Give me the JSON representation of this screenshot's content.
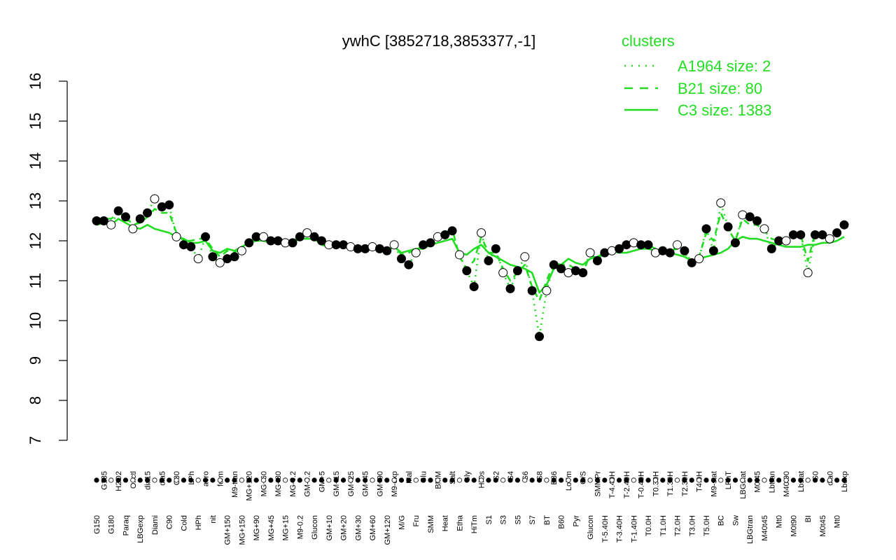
{
  "chart_data": {
    "type": "line",
    "title": "ywhC [3852718,3853377,-1]",
    "xlabel": "",
    "ylabel": "",
    "ylim": [
      7,
      16
    ],
    "yticks": [
      7,
      8,
      9,
      10,
      11,
      12,
      13,
      14,
      15,
      16
    ],
    "colors": {
      "line": "#22dd22",
      "point_fill": "#000000",
      "point_open": "#ffffff",
      "text": "#000000",
      "legend": "#22dd22"
    },
    "legend": {
      "title": "clusters",
      "position": "top-right",
      "entries": [
        {
          "label": "A1964 size: 2",
          "style": "dotted"
        },
        {
          "label": "B21 size: 80",
          "style": "dashed"
        },
        {
          "label": "C3 size: 1383",
          "style": "solid"
        }
      ]
    },
    "top_labels": [
      "G150",
      "G135",
      "G180",
      "H2O2",
      "Paraq",
      "Oxctl",
      "LBGexp",
      "dia15",
      "Diami",
      "dia5",
      "C90",
      "C30",
      "Cold",
      "LPh",
      "HPh",
      "aero",
      "nit",
      "ferm",
      "GM+150",
      "M9-tran",
      "MG+150",
      "MG+120",
      "MG+90",
      "MG+60",
      "MG+45",
      "MG+30",
      "MG+15",
      "MG-0.2",
      "M9-0.2",
      "GM-0.2",
      "Glucon",
      "GM+5",
      "GM+10",
      "GM+15",
      "GM+20",
      "GM+25",
      "GM+30",
      "GM+45",
      "GM+60",
      "GM+90",
      "GM+120",
      "M9-exp",
      "M/G",
      "Mal",
      "Fru",
      "Glu",
      "SMM",
      "BMM",
      "Heat",
      "Salt",
      "Etha",
      "Gly",
      "HiTm",
      "HiOs",
      "S1",
      "S2",
      "S3",
      "S4",
      "S5",
      "S6",
      "S7",
      "S8",
      "BT",
      "B36",
      "B60",
      "LoTm",
      "Pyr",
      "G/S",
      "Glucon",
      "SMMPr",
      "T-5.40H",
      "T-4.40H",
      "T-3.40H",
      "T-2.40H",
      "T-1.40H",
      "T-0.40H",
      "T0.0H",
      "T0.30H",
      "T1.0H",
      "T1.30H",
      "T2.0H",
      "T2.30H",
      "T3.0H",
      "T4.0H",
      "T5.0H",
      "M9-stat",
      "BC",
      "LPhT",
      "Sw",
      "LBGstat",
      "LBGtran",
      "M0t45",
      "M40t45",
      "Lbtran",
      "Mt0",
      "M40t90",
      "M0t90",
      "Lbstat",
      "BI",
      "S0",
      "M0t45",
      "dia0",
      "Mt0",
      "Lbexp"
    ],
    "series": [
      {
        "style": "solid",
        "y": [
          12.4,
          12.45,
          12.4,
          12.55,
          12.45,
          12.35,
          12.3,
          12.4,
          12.3,
          12.25,
          12.2,
          12.1,
          12.05,
          11.95,
          11.95,
          12.0,
          11.75,
          11.7,
          11.8,
          11.75,
          11.85,
          11.95,
          12.0,
          12.0,
          11.95,
          11.95,
          11.95,
          11.95,
          12.05,
          12.05,
          12.05,
          11.9,
          11.85,
          11.85,
          11.9,
          11.8,
          11.8,
          11.8,
          11.85,
          11.8,
          11.75,
          11.85,
          11.7,
          11.75,
          11.8,
          11.8,
          11.9,
          11.95,
          12.0,
          12.05,
          11.7,
          11.65,
          11.8,
          11.9,
          11.7,
          11.6,
          11.5,
          11.4,
          11.35,
          11.3,
          11.2,
          10.7,
          10.9,
          11.3,
          11.4,
          11.55,
          11.45,
          11.4,
          11.55,
          11.6,
          11.7,
          11.75,
          11.7,
          11.7,
          11.75,
          11.8,
          11.8,
          11.75,
          11.75,
          11.7,
          11.65,
          11.6,
          11.5,
          11.55,
          11.6,
          11.65,
          11.7,
          11.8,
          12.0,
          12.1,
          12.05,
          12.05,
          12.0,
          11.95,
          11.9,
          11.85,
          11.85,
          11.85,
          11.9,
          11.9,
          11.95,
          11.95,
          12.0,
          12.1
        ]
      },
      {
        "style": "dashed",
        "y": [
          12.5,
          12.55,
          12.55,
          12.7,
          12.6,
          12.4,
          12.45,
          12.6,
          12.8,
          12.7,
          12.7,
          12.2,
          12.0,
          12.0,
          12.05,
          12.05,
          11.8,
          11.6,
          11.75,
          11.7,
          11.85,
          11.95,
          12.05,
          12.05,
          12.0,
          12.0,
          12.0,
          12.0,
          12.1,
          12.15,
          12.1,
          12.0,
          11.95,
          11.95,
          11.95,
          11.9,
          11.85,
          11.85,
          11.9,
          11.85,
          11.8,
          11.9,
          11.65,
          11.7,
          11.8,
          11.85,
          11.95,
          12.05,
          12.2,
          12.3,
          11.6,
          11.3,
          11.5,
          12.1,
          11.7,
          11.7,
          11.3,
          11.0,
          11.2,
          11.4,
          10.85,
          10.5,
          11.0,
          11.45,
          11.4,
          11.4,
          11.3,
          11.2,
          11.65,
          11.55,
          11.7,
          11.8,
          11.8,
          11.9,
          11.9,
          11.9,
          11.9,
          11.8,
          11.8,
          11.75,
          11.8,
          11.7,
          11.45,
          11.6,
          12.2,
          12.0,
          12.7,
          12.3,
          12.0,
          12.55,
          12.4,
          12.4,
          12.25,
          12.05,
          12.0,
          12.0,
          12.1,
          12.15,
          11.5,
          12.2,
          12.1,
          12.0,
          12.1,
          12.3
        ]
      },
      {
        "style": "dotted",
        "y": [
          12.5,
          12.5,
          12.4,
          12.75,
          12.6,
          12.3,
          12.55,
          12.7,
          13.05,
          12.85,
          12.9,
          12.1,
          11.9,
          11.85,
          11.55,
          12.1,
          11.6,
          11.45,
          11.55,
          11.6,
          11.75,
          11.95,
          12.1,
          12.1,
          12.0,
          12.0,
          11.95,
          11.95,
          12.1,
          12.2,
          12.1,
          12.0,
          11.9,
          11.9,
          11.9,
          11.85,
          11.8,
          11.8,
          11.85,
          11.8,
          11.75,
          11.9,
          11.55,
          11.4,
          11.7,
          11.9,
          11.95,
          12.1,
          12.15,
          12.25,
          11.65,
          11.25,
          10.85,
          12.2,
          11.5,
          11.8,
          11.2,
          10.8,
          11.25,
          11.6,
          10.75,
          9.6,
          10.75,
          11.4,
          11.3,
          11.2,
          11.25,
          11.2,
          11.7,
          11.5,
          11.7,
          11.75,
          11.8,
          11.9,
          11.95,
          11.9,
          11.9,
          11.7,
          11.75,
          11.7,
          11.9,
          11.75,
          11.45,
          11.55,
          12.3,
          11.75,
          12.95,
          12.35,
          11.95,
          12.65,
          12.6,
          12.5,
          12.3,
          11.8,
          12.0,
          12.0,
          12.15,
          12.15,
          11.2,
          12.15,
          12.15,
          12.05,
          12.2,
          12.4
        ]
      }
    ]
  }
}
